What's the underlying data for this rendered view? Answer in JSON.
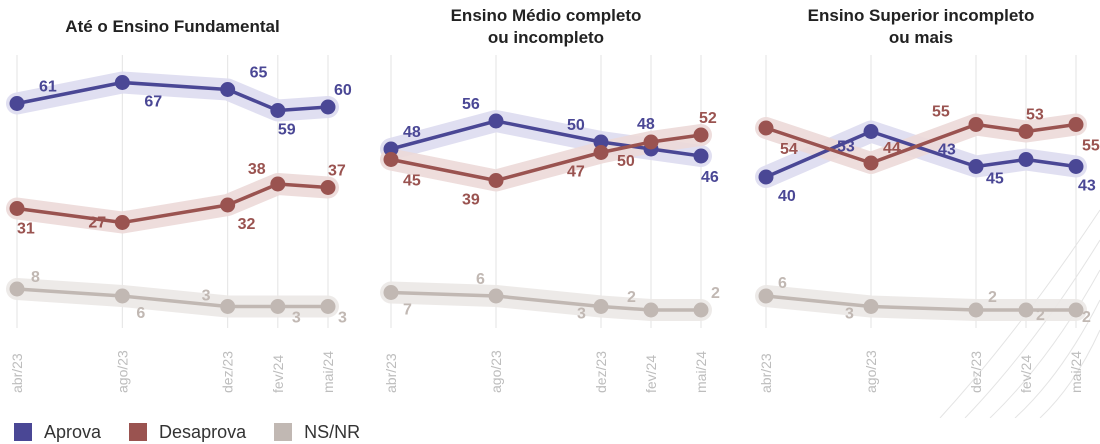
{
  "chart_data": [
    {
      "type": "line",
      "title": "Até o Ensino Fundamental",
      "categories": [
        "abr/23",
        "ago/23",
        "dez/23",
        "fev/24",
        "mai/24"
      ],
      "series": [
        {
          "name": "Aprova",
          "values": [
            61,
            67,
            65,
            59,
            60
          ]
        },
        {
          "name": "Desaprova",
          "values": [
            31,
            27,
            32,
            38,
            37
          ]
        },
        {
          "name": "NS/NR",
          "values": [
            8,
            6,
            3,
            3,
            3
          ]
        }
      ]
    },
    {
      "type": "line",
      "title": "Ensino Médio completo ou incompleto",
      "categories": [
        "abr/23",
        "ago/23",
        "dez/23",
        "fev/24",
        "mai/24"
      ],
      "series": [
        {
          "name": "Aprova",
          "values": [
            48,
            56,
            50,
            48,
            46
          ]
        },
        {
          "name": "Desaprova",
          "values": [
            45,
            39,
            47,
            50,
            52
          ]
        },
        {
          "name": "NS/NR",
          "values": [
            7,
            6,
            3,
            2,
            2
          ]
        }
      ]
    },
    {
      "type": "line",
      "title": "Ensino Superior incompleto ou mais",
      "categories": [
        "abr/23",
        "ago/23",
        "dez/23",
        "fev/24",
        "mai/24"
      ],
      "series": [
        {
          "name": "Aprova",
          "values": [
            40,
            53,
            43,
            45,
            43
          ]
        },
        {
          "name": "Desaprova",
          "values": [
            54,
            44,
            55,
            53,
            55
          ]
        },
        {
          "name": "NS/NR",
          "values": [
            6,
            3,
            2,
            2,
            2
          ]
        }
      ]
    }
  ],
  "legend": [
    {
      "label": "Aprova",
      "color": "#4a4795"
    },
    {
      "label": "Desaprova",
      "color": "#9a5350"
    },
    {
      "label": "NS/NR",
      "color": "#c1b8b3"
    }
  ]
}
